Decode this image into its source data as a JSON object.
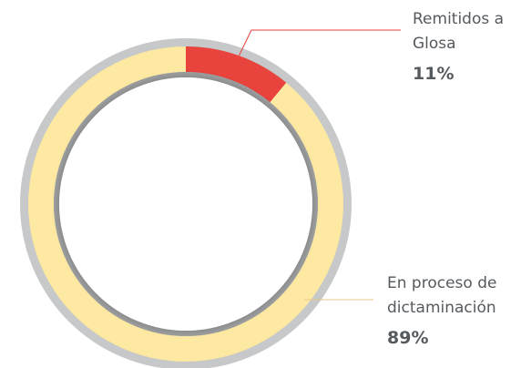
{
  "chart_data": {
    "type": "donut",
    "categories": [
      "Remitidos a Glosa",
      "En proceso de dictaminación"
    ],
    "values": [
      11,
      89
    ],
    "value_labels": [
      "11%",
      "89%"
    ],
    "colors": [
      "#e8433c",
      "#fde9a2"
    ]
  }
}
